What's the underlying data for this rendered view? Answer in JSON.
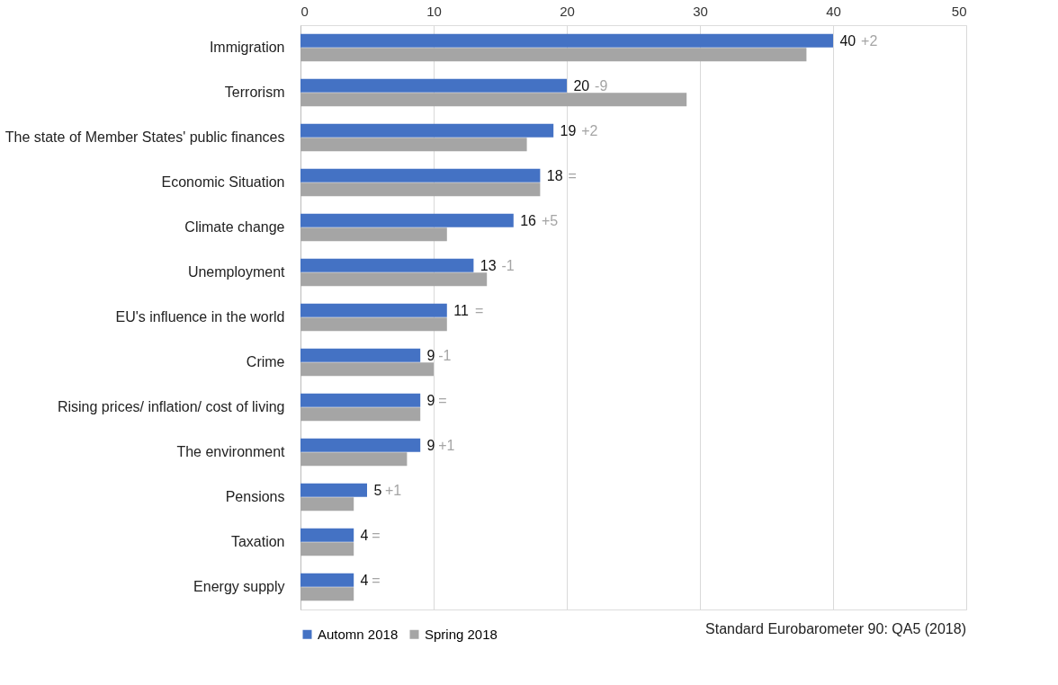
{
  "chart_data": {
    "type": "bar",
    "orientation": "horizontal",
    "categories": [
      "Immigration",
      "Terrorism",
      "The state of Member States' public finances",
      "Economic Situation",
      "Climate change",
      "Unemployment",
      "EU's influence in the world",
      "Crime",
      "Rising prices/ inflation/ cost of living",
      "The environment",
      "Pensions",
      "Taxation",
      "Energy supply"
    ],
    "series": [
      {
        "name": "Automn 2018",
        "color": "#4472c4",
        "values": [
          40,
          20,
          19,
          18,
          16,
          13,
          11,
          9,
          9,
          9,
          5,
          4,
          4
        ],
        "value_labels": [
          "40",
          "20",
          "19",
          "18",
          "16",
          "13",
          "11",
          "9",
          "9",
          "9",
          "5",
          "4",
          "4"
        ]
      },
      {
        "name": "Spring 2018",
        "color": "#a5a5a5",
        "values": [
          38,
          29,
          17,
          18,
          11,
          14,
          11,
          10,
          9,
          8,
          4,
          4,
          4
        ]
      }
    ],
    "xlim": [
      0,
      50
    ],
    "xticks": [
      0,
      10,
      20,
      30,
      40,
      50
    ],
    "grid": "x",
    "legend": "bottom",
    "annotations": [
      "+2",
      "-9",
      "+2",
      "=",
      "+5",
      "-1",
      "=",
      "-1",
      "=",
      "+1",
      "+1",
      "=",
      "=",
      "Standard Eurobarometer 90: QA5 (2018)"
    ]
  }
}
